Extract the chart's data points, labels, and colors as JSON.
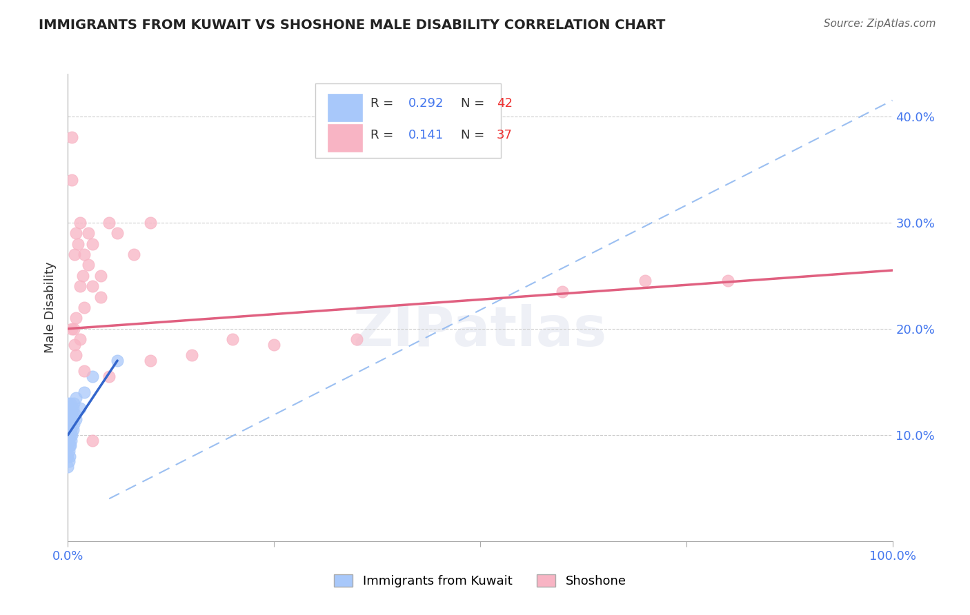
{
  "title": "IMMIGRANTS FROM KUWAIT VS SHOSHONE MALE DISABILITY CORRELATION CHART",
  "source": "Source: ZipAtlas.com",
  "ylabel": "Male Disability",
  "xlim": [
    0.0,
    1.0
  ],
  "ylim": [
    0.0,
    0.44
  ],
  "R_blue": 0.292,
  "N_blue": 42,
  "R_pink": 0.141,
  "N_pink": 37,
  "legend_label_blue": "Immigrants from Kuwait",
  "legend_label_pink": "Shoshone",
  "blue_color": "#A8C8FA",
  "pink_color": "#F8B4C4",
  "blue_line_color": "#3366CC",
  "pink_line_color": "#E06080",
  "dashed_line_color": "#90B8F0",
  "watermark": "ZIPatlas",
  "blue_x": [
    0.0,
    0.0,
    0.0,
    0.0,
    0.0,
    0.0,
    0.0,
    0.0,
    0.0,
    0.0,
    0.001,
    0.001,
    0.001,
    0.001,
    0.001,
    0.001,
    0.001,
    0.002,
    0.002,
    0.002,
    0.002,
    0.002,
    0.003,
    0.003,
    0.003,
    0.003,
    0.004,
    0.004,
    0.004,
    0.005,
    0.005,
    0.006,
    0.006,
    0.007,
    0.007,
    0.008,
    0.01,
    0.01,
    0.015,
    0.02,
    0.03,
    0.06
  ],
  "blue_y": [
    0.07,
    0.08,
    0.09,
    0.095,
    0.1,
    0.105,
    0.11,
    0.115,
    0.12,
    0.13,
    0.075,
    0.085,
    0.095,
    0.1,
    0.105,
    0.115,
    0.125,
    0.08,
    0.09,
    0.1,
    0.11,
    0.12,
    0.09,
    0.1,
    0.11,
    0.13,
    0.095,
    0.105,
    0.115,
    0.1,
    0.12,
    0.105,
    0.125,
    0.11,
    0.13,
    0.12,
    0.115,
    0.135,
    0.125,
    0.14,
    0.155,
    0.17
  ],
  "pink_x": [
    0.005,
    0.005,
    0.008,
    0.01,
    0.012,
    0.015,
    0.018,
    0.02,
    0.025,
    0.03,
    0.04,
    0.05,
    0.06,
    0.08,
    0.1,
    0.015,
    0.02,
    0.025,
    0.03,
    0.04,
    0.007,
    0.01,
    0.015,
    0.35,
    0.6,
    0.7,
    0.8,
    0.05,
    0.1,
    0.15,
    0.2,
    0.25,
    0.005,
    0.008,
    0.01,
    0.02,
    0.03
  ],
  "pink_y": [
    0.38,
    0.34,
    0.27,
    0.29,
    0.28,
    0.3,
    0.25,
    0.27,
    0.29,
    0.28,
    0.25,
    0.3,
    0.29,
    0.27,
    0.3,
    0.24,
    0.22,
    0.26,
    0.24,
    0.23,
    0.2,
    0.21,
    0.19,
    0.19,
    0.235,
    0.245,
    0.245,
    0.155,
    0.17,
    0.175,
    0.19,
    0.185,
    0.2,
    0.185,
    0.175,
    0.16,
    0.095
  ],
  "blue_trend_x": [
    0.0,
    0.06
  ],
  "blue_trend_y": [
    0.1,
    0.17
  ],
  "pink_trend_x": [
    0.0,
    1.0
  ],
  "pink_trend_y": [
    0.2,
    0.255
  ],
  "dashed_trend_x": [
    0.05,
    1.0
  ],
  "dashed_trend_y": [
    0.04,
    0.415
  ]
}
